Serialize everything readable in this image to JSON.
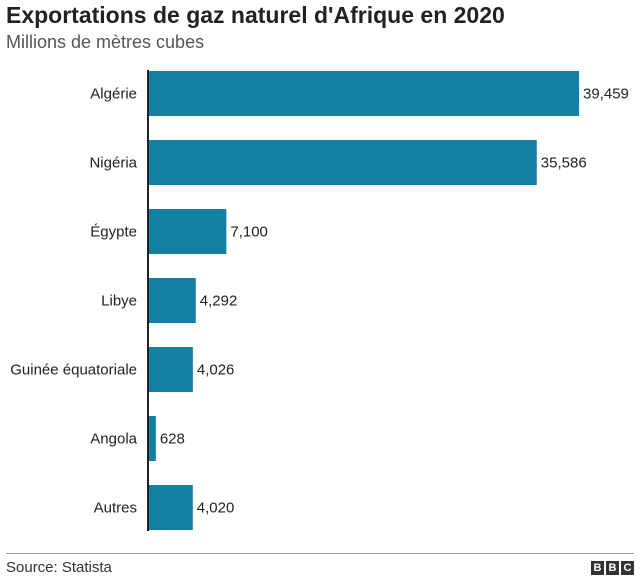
{
  "header": {
    "title": "Exportations de gaz naturel d'Afrique en 2020",
    "subtitle": "Millions de mètres cubes"
  },
  "footer": {
    "source": "Source: Statista",
    "logo": [
      "B",
      "B",
      "C"
    ]
  },
  "colors": {
    "bar": "#1380A1",
    "axis": "#222222"
  },
  "chart_data": {
    "type": "bar",
    "orientation": "horizontal",
    "title": "Exportations de gaz naturel d'Afrique en 2020",
    "subtitle": "Millions de mètres cubes",
    "categories": [
      "Algérie",
      "Nigéria",
      "Égypte",
      "Libye",
      "Guinée équatoriale",
      "Angola",
      "Autres"
    ],
    "values": [
      39459,
      35586,
      7100,
      4292,
      4026,
      628,
      4020
    ],
    "value_labels": [
      "39,459",
      "35,586",
      "7,100",
      "4,292",
      "4,026",
      "628",
      "4,020"
    ],
    "xlim": [
      0,
      39459
    ],
    "grid": false,
    "legend": "none"
  }
}
